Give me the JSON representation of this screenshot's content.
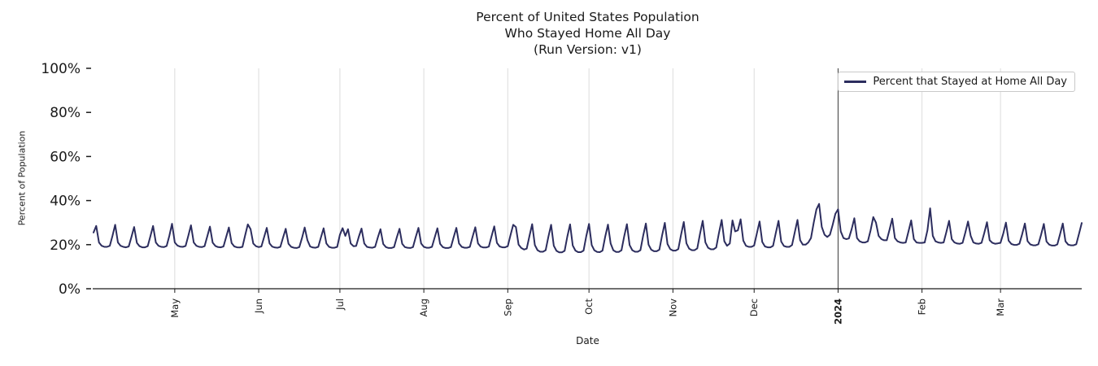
{
  "display": {
    "title_lines": [
      "Percent of United States Population",
      "Who Stayed Home All Day",
      "(Run Version: v1)"
    ]
  },
  "legend": {
    "label": "Percent that Stayed at Home All Day"
  },
  "colors": {
    "line": "#2c2d5e",
    "grid": "#dcdcdc",
    "axis": "#1a1a1a",
    "year_line": "#3c3c3c",
    "text": "#1a1a1a",
    "legend_border": "#c9c9c9"
  },
  "chart_data": {
    "type": "line",
    "title": "Percent of United States Population Who Stayed Home All Day (Run Version: v1)",
    "xlabel": "Date",
    "ylabel": "Percent of Population",
    "ylim": [
      0,
      100
    ],
    "grid": "vertical-month-lines",
    "legend_position": "upper right",
    "y_ticks": [
      {
        "value": 0,
        "label": "0%"
      },
      {
        "value": 20,
        "label": "20%"
      },
      {
        "value": 40,
        "label": "40%"
      },
      {
        "value": 60,
        "label": "60%"
      },
      {
        "value": 80,
        "label": "80%"
      },
      {
        "value": 100,
        "label": "100%"
      }
    ],
    "x_ticks": [
      {
        "label": "May",
        "day": 30,
        "bold": false
      },
      {
        "label": "Jun",
        "day": 61,
        "bold": false
      },
      {
        "label": "Jul",
        "day": 91,
        "bold": false
      },
      {
        "label": "Aug",
        "day": 122,
        "bold": false
      },
      {
        "label": "Sep",
        "day": 153,
        "bold": false
      },
      {
        "label": "Oct",
        "day": 183,
        "bold": false
      },
      {
        "label": "Nov",
        "day": 214,
        "bold": false
      },
      {
        "label": "Dec",
        "day": 244,
        "bold": false
      },
      {
        "label": "2024",
        "day": 275,
        "bold": true
      },
      {
        "label": "Feb",
        "day": 306,
        "bold": false
      },
      {
        "label": "Mar",
        "day": 335,
        "bold": false
      }
    ],
    "series": [
      {
        "name": "Percent that Stayed at Home All Day",
        "start_date": "2023-04-01",
        "frequency": "daily",
        "unit": "percent",
        "values": [
          25.5,
          28.5,
          21,
          19.5,
          19,
          19,
          19.5,
          24,
          29,
          21,
          19.5,
          19,
          18.8,
          19.2,
          23.5,
          28,
          20.8,
          19.3,
          18.8,
          18.8,
          19.3,
          23.8,
          28.5,
          21,
          19.5,
          19,
          18.9,
          19.4,
          24,
          29.5,
          21,
          19.6,
          19.1,
          19,
          19.4,
          24,
          28.8,
          21,
          19.5,
          19,
          18.9,
          19.3,
          23.7,
          28.2,
          20.9,
          19.4,
          18.9,
          18.8,
          19.2,
          23.5,
          27.8,
          20.7,
          19.2,
          18.8,
          18.7,
          19,
          24.2,
          29.2,
          27,
          20.5,
          19.3,
          18.9,
          19.2,
          23.4,
          27.6,
          20.6,
          19.1,
          18.7,
          18.6,
          19,
          23.2,
          27.2,
          20.4,
          19,
          18.6,
          18.5,
          18.9,
          23,
          27.8,
          22,
          19.2,
          18.7,
          18.6,
          19,
          23.3,
          27.4,
          20.5,
          19,
          18.6,
          18.6,
          19,
          24.5,
          27.5,
          24,
          27,
          20.5,
          19.3,
          19.4,
          23.6,
          27.3,
          20.5,
          19,
          18.7,
          18.6,
          19,
          23.2,
          27,
          20.3,
          18.9,
          18.5,
          18.5,
          18.9,
          23.2,
          27.2,
          20.4,
          18.9,
          18.6,
          18.5,
          18.9,
          23.4,
          27.6,
          20.5,
          19,
          18.6,
          18.6,
          19,
          23.2,
          27.4,
          20.4,
          18.9,
          18.5,
          18.5,
          18.9,
          23.3,
          27.6,
          20.5,
          19,
          18.6,
          18.6,
          19,
          23.5,
          27.9,
          20.6,
          19.1,
          18.7,
          18.7,
          19.1,
          23.7,
          28.3,
          20.8,
          19.2,
          18.8,
          18.8,
          19.3,
          24.2,
          29,
          28,
          20,
          18.5,
          17.8,
          18.2,
          23.8,
          29.3,
          19.8,
          17.5,
          16.8,
          16.8,
          17.5,
          23.5,
          29,
          19.5,
          17.2,
          16.5,
          16.5,
          17.2,
          23.6,
          29.2,
          19.6,
          17.3,
          16.6,
          16.6,
          17.3,
          23.8,
          29.4,
          19.8,
          17.4,
          16.7,
          16.6,
          17.3,
          23.6,
          29.1,
          20.5,
          17.4,
          16.7,
          16.7,
          17.4,
          23.7,
          29.3,
          19.8,
          17.5,
          16.8,
          16.8,
          17.5,
          23.9,
          29.6,
          20,
          17.7,
          17,
          17,
          17.7,
          24.1,
          29.9,
          20.3,
          18,
          17.3,
          17.3,
          18,
          24.4,
          30.3,
          20.6,
          18.2,
          17.5,
          17.5,
          18.3,
          24.8,
          30.8,
          21,
          18.6,
          17.9,
          17.9,
          18.7,
          25.2,
          31.2,
          21.5,
          19.5,
          20.5,
          31,
          26,
          26.5,
          31.5,
          21.8,
          19.5,
          19,
          19,
          19.6,
          25,
          30.5,
          21.2,
          19.2,
          18.8,
          18.8,
          19.5,
          25.2,
          30.8,
          21.4,
          19.4,
          19,
          19,
          19.8,
          25.6,
          31.2,
          22,
          20,
          20,
          21,
          23,
          30,
          36,
          38.5,
          28,
          24.5,
          23.5,
          24.5,
          29,
          34,
          36,
          26,
          23,
          22.5,
          22.8,
          27,
          32,
          23,
          21.5,
          21,
          21,
          21.5,
          26.5,
          32.5,
          30,
          24,
          22.5,
          22,
          22,
          26.8,
          31.8,
          23,
          21.5,
          21,
          20.8,
          21,
          26,
          31,
          22.5,
          21,
          20.8,
          20.8,
          21,
          26.5,
          36.5,
          24,
          21.5,
          21,
          20.8,
          21,
          25.8,
          30.8,
          22.5,
          21,
          20.5,
          20.4,
          20.8,
          25.5,
          30.5,
          24,
          21,
          20.5,
          20.4,
          20.8,
          25.3,
          30.2,
          22,
          20.8,
          20.4,
          20.6,
          20.8,
          25,
          30,
          21.8,
          20.3,
          19.9,
          19.9,
          20.4,
          24.8,
          29.6,
          21.6,
          20.1,
          19.7,
          19.7,
          20.2,
          24.6,
          29.4,
          21.4,
          20,
          19.6,
          19.6,
          20.1,
          24.8,
          29.6,
          21.5,
          20,
          19.7,
          19.7,
          20.2,
          25,
          29.8
        ]
      }
    ]
  }
}
